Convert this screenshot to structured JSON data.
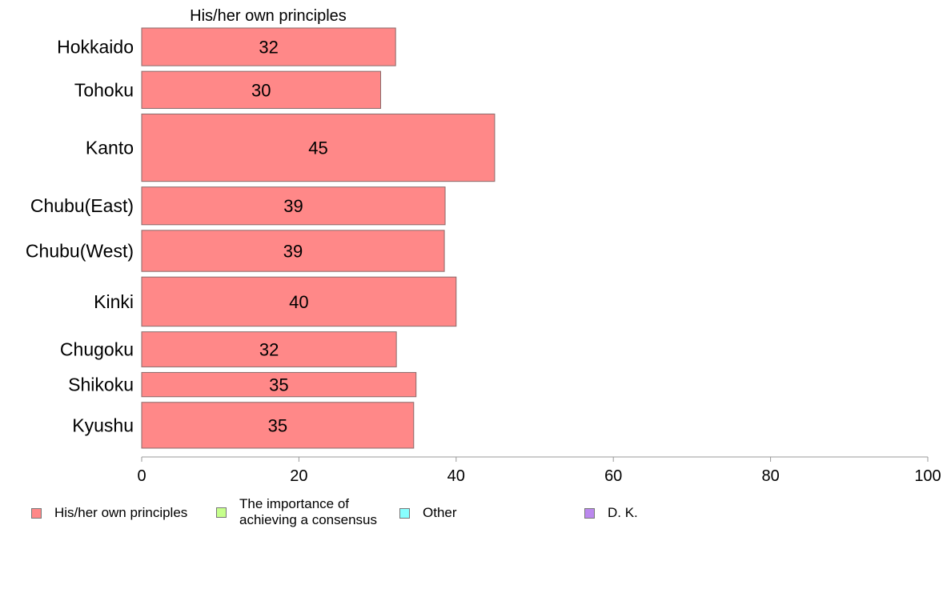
{
  "chart_data": {
    "type": "bar",
    "orientation": "horizontal",
    "stacked": true,
    "title": "His/her own principles",
    "categories": [
      "Hokkaido",
      "Tohoku",
      "Kanto",
      "Chubu(East)",
      "Chubu(West)",
      "Kinki",
      "Chugoku",
      "Shikoku",
      "Kyushu"
    ],
    "series": [
      {
        "name": "His/her own principles",
        "color": "#ff8888",
        "values": [
          32.3,
          30.4,
          44.9,
          38.6,
          38.5,
          40.0,
          32.4,
          34.9,
          34.6
        ],
        "labels": [
          "32",
          "30",
          "45",
          "39",
          "39",
          "40",
          "32",
          "35",
          "35"
        ]
      }
    ],
    "bar_weights": [
      0.56,
      0.55,
      1.0,
      0.56,
      0.61,
      0.73,
      0.52,
      0.36,
      0.68
    ],
    "xlim": [
      0,
      100
    ],
    "xticks": [
      0,
      20,
      40,
      60,
      80,
      100
    ],
    "grid": false,
    "legend_position": "bottom",
    "legend": [
      {
        "label": "His/her own principles",
        "color": "#ff8888"
      },
      {
        "label": "The importance of\nachieving a consensus",
        "color": "#c6ff8c"
      },
      {
        "label": "Other",
        "color": "#88ffff"
      },
      {
        "label": "D. K.",
        "color": "#bb88ee"
      }
    ]
  }
}
